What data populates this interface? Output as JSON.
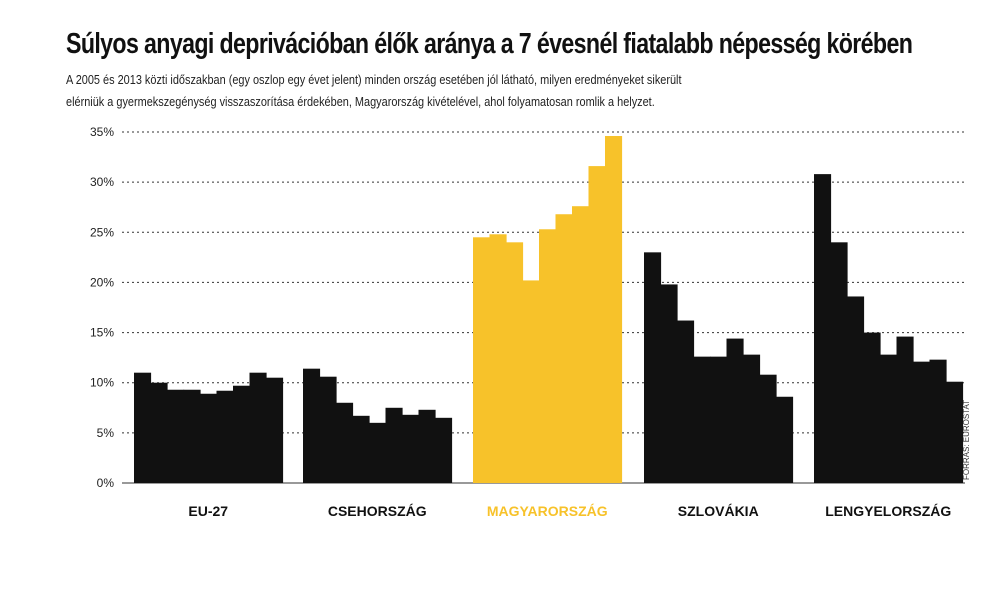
{
  "title": "Súlyos anyagi deprivációban élők aránya a 7 évesnél fiatalabb népesség körében",
  "subtitle_line1": "A 2005 és 2013 közti időszakban (egy oszlop egy évet jelent) minden ország esetében jól látható, milyen eredményeket sikerült",
  "subtitle_line2": "elérniük a gyermekszegénység visszaszorítása érdekében, Magyarország kivételével, ahol folyamatosan romlik a helyzet.",
  "source": "FORRÁS: EUROSTAT",
  "colors": {
    "default": "#111111",
    "highlight": "#f7c22a",
    "grid": "#333333"
  },
  "chart_data": {
    "type": "bar",
    "ylim": [
      0,
      35
    ],
    "yticks": [
      0,
      5,
      10,
      15,
      20,
      25,
      30,
      35
    ],
    "ytick_labels": [
      "0%",
      "5%",
      "10%",
      "15%",
      "20%",
      "25%",
      "30%",
      "35%"
    ],
    "grid": "dotted horizontal",
    "years_per_group": 9,
    "groups": [
      {
        "label": "EU-27",
        "highlight": false,
        "values": [
          11.0,
          10.0,
          9.3,
          9.3,
          8.9,
          9.2,
          9.7,
          11.0,
          10.5
        ]
      },
      {
        "label": "CSEHORSZÁG",
        "highlight": false,
        "values": [
          11.4,
          10.6,
          8.0,
          6.7,
          6.0,
          7.5,
          6.8,
          7.3,
          6.5
        ]
      },
      {
        "label": "MAGYARORSZÁG",
        "highlight": true,
        "values": [
          24.5,
          24.8,
          24.0,
          20.2,
          25.3,
          26.8,
          27.6,
          31.6,
          34.6
        ]
      },
      {
        "label": "SZLOVÁKIA",
        "highlight": false,
        "values": [
          23.0,
          19.8,
          16.2,
          12.6,
          12.6,
          14.4,
          12.8,
          10.8,
          8.6
        ]
      },
      {
        "label": "LENGYELORSZÁG",
        "highlight": false,
        "values": [
          30.8,
          24.0,
          18.6,
          15.0,
          12.8,
          14.6,
          12.1,
          12.3,
          10.1
        ]
      }
    ]
  }
}
